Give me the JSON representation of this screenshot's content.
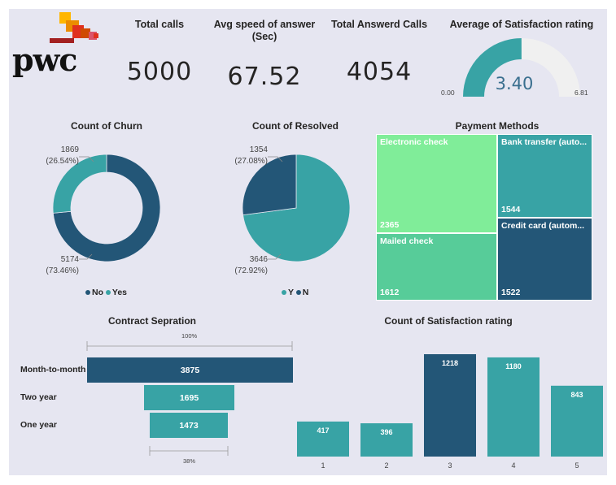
{
  "colors": {
    "dark_teal": "#235677",
    "teal": "#38a3a5",
    "light_green": "#80ed99",
    "mid_green": "#57cc99",
    "gauge_empty": "#f0f0f0",
    "background": "#e6e6f1"
  },
  "logo": {
    "text": "pwc"
  },
  "kpis": [
    {
      "title": "Total calls",
      "value": "5000"
    },
    {
      "title": "Avg speed of answer (Sec)",
      "value": "67.52"
    },
    {
      "title": "Total Answerd Calls",
      "value": "4054"
    }
  ],
  "gauge": {
    "title": "Average of Satisfaction rating",
    "value": "3.40",
    "min": "0.00",
    "max": "6.81",
    "fraction": 0.4993
  },
  "churn": {
    "title": "Count of Churn",
    "label_yes": "1869",
    "label_yes_pct": "(26.54%)",
    "label_no": "5174",
    "label_no_pct": "(73.46%)",
    "legend": [
      "No",
      "Yes"
    ]
  },
  "resolved": {
    "title": "Count of Resolved",
    "label_n": "1354",
    "label_n_pct": "(27.08%)",
    "label_y": "3646",
    "label_y_pct": "(72.92%)",
    "legend": [
      "Y",
      "N"
    ]
  },
  "payment": {
    "title": "Payment Methods",
    "cells": [
      {
        "label": "Electronic check",
        "value": "2365"
      },
      {
        "label": "Bank transfer (auto...",
        "value": "1544"
      },
      {
        "label": "Mailed check",
        "value": "1612"
      },
      {
        "label": "Credit card (autom...",
        "value": "1522"
      }
    ]
  },
  "contract": {
    "title": "Contract Sepration",
    "top_pct": "100%",
    "bottom_pct": "38%",
    "rows": [
      {
        "label": "Month-to-month",
        "value": "3875"
      },
      {
        "label": "Two year",
        "value": "1695"
      },
      {
        "label": "One year",
        "value": "1473"
      }
    ]
  },
  "chart_data": [
    {
      "type": "pie",
      "title": "Count of Churn",
      "categories": [
        "No",
        "Yes"
      ],
      "values": [
        5174,
        1869
      ],
      "percentages": [
        73.46,
        26.54
      ]
    },
    {
      "type": "pie",
      "title": "Count of Resolved",
      "categories": [
        "Y",
        "N"
      ],
      "values": [
        3646,
        1354
      ],
      "percentages": [
        72.92,
        27.08
      ]
    },
    {
      "type": "bar",
      "title": "Count of Satisfaction rating",
      "categories": [
        "1",
        "2",
        "3",
        "4",
        "5"
      ],
      "values": [
        417,
        396,
        1218,
        1180,
        843
      ],
      "ylim": [
        0,
        1218
      ]
    }
  ]
}
